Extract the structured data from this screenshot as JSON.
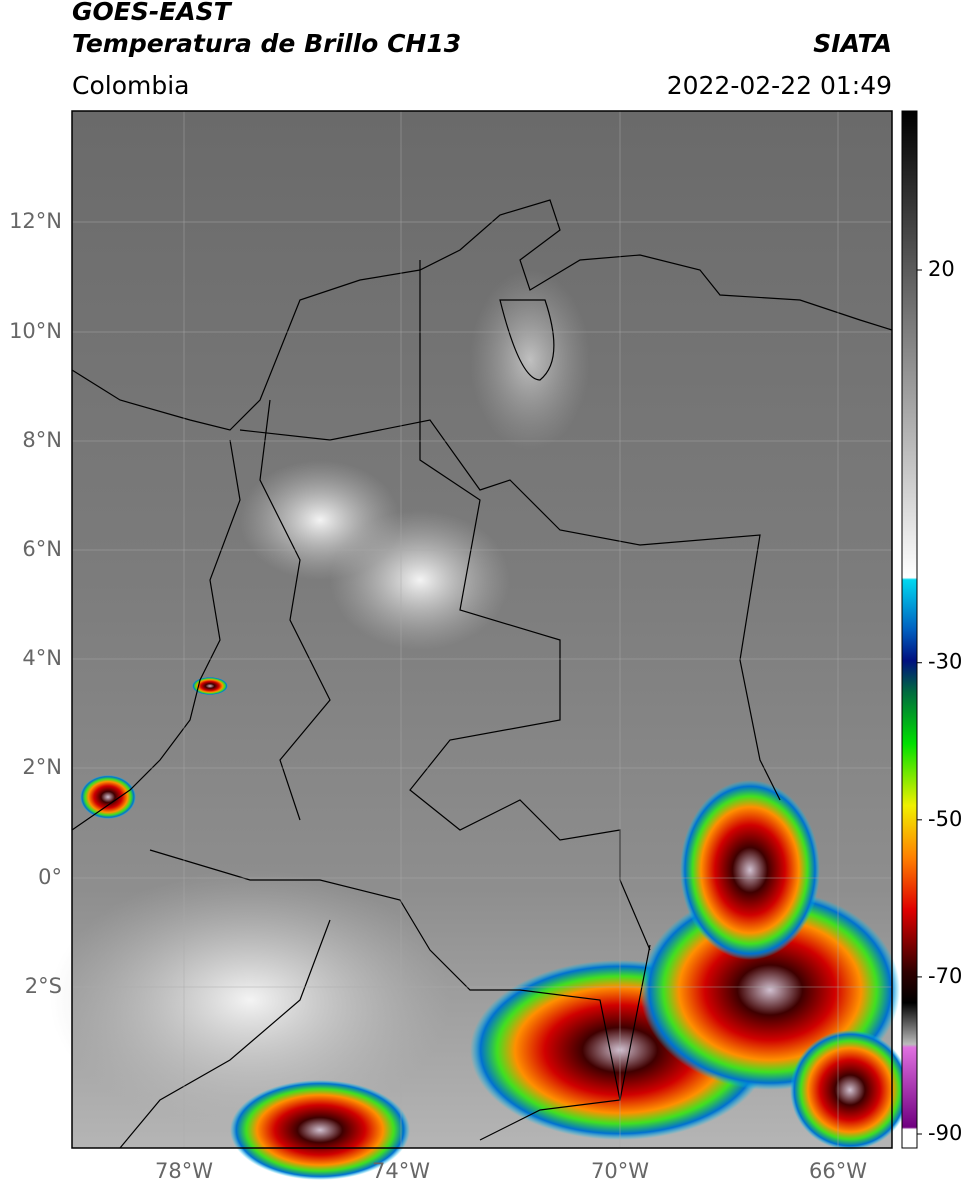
{
  "header": {
    "source": "GOES-EAST",
    "product": "Temperatura de Brillo CH13",
    "region": "Colombia",
    "agency": "SIATA",
    "datetime": "2022-02-22 01:49"
  },
  "map": {
    "lat_labels": [
      "12°N",
      "10°N",
      "8°N",
      "6°N",
      "4°N",
      "2°N",
      "0°",
      "2°S"
    ],
    "lon_labels": [
      "78°W",
      "74°W",
      "70°W",
      "66°W"
    ]
  },
  "colorbar": {
    "ticks": [
      20,
      -30,
      -50,
      -70,
      -90
    ]
  }
}
